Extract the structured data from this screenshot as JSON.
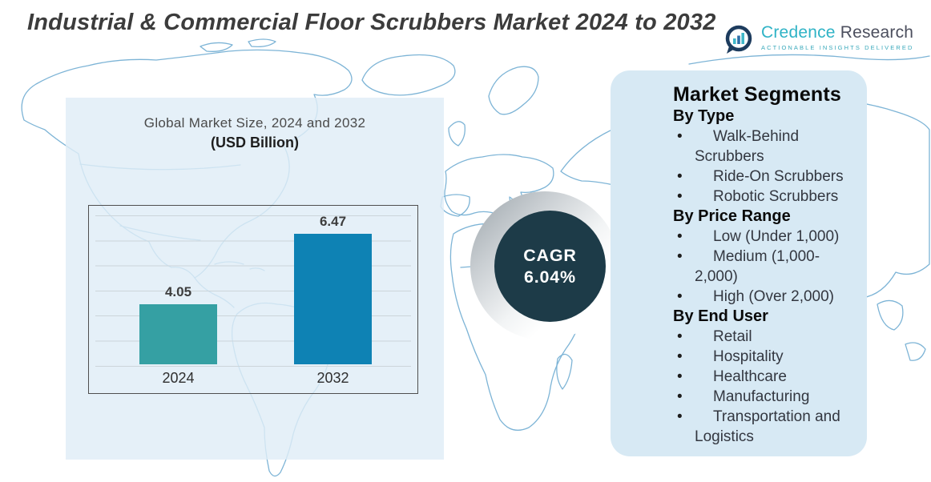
{
  "title": "Industrial & Commercial Floor Scrubbers Market 2024 to 2032",
  "logo": {
    "brand_primary": "Credence",
    "brand_secondary": "Research",
    "tagline": "Actionable Insights Delivered",
    "icon": "bar-chart-bubble-icon",
    "colors": {
      "brand_primary": "#2fb3c6",
      "brand_secondary": "#4c4f5e",
      "icon_ring": "#1d3c5e"
    }
  },
  "chart_data": {
    "type": "bar",
    "title": "Global Market Size, 2024 and 2032",
    "subtitle": "(USD Billion)",
    "categories": [
      "2024",
      "2032"
    ],
    "values": [
      4.05,
      6.47
    ],
    "value_labels": [
      "4.05",
      "6.47"
    ],
    "bar_colors": [
      "#35a0a3",
      "#0e82b4"
    ],
    "ylim": [
      2,
      7
    ],
    "grid": true,
    "legend": false,
    "unit": "USD Billion"
  },
  "cagr_badge": {
    "label": "CAGR",
    "value": "6.04%",
    "circle_color": "#1d3b48",
    "text_color": "#ffffff"
  },
  "segments_panel": {
    "title": "Market Segments",
    "background": "#d7e9f4",
    "groups": [
      {
        "heading": "By Type",
        "items": [
          "Walk-Behind Scrubbers",
          "Ride-On Scrubbers",
          "Robotic Scrubbers"
        ]
      },
      {
        "heading": "By Price Range",
        "items": [
          "Low (Under 1,000)",
          "Medium (1,000-2,000)",
          "High (Over 2,000)"
        ]
      },
      {
        "heading": "By End User",
        "items": [
          "Retail",
          "Hospitality",
          "Healthcare",
          "Manufacturing",
          "Transportation and Logistics"
        ]
      }
    ]
  },
  "map": {
    "name": "world-map-outline",
    "stroke_color": "#7db4d6"
  }
}
